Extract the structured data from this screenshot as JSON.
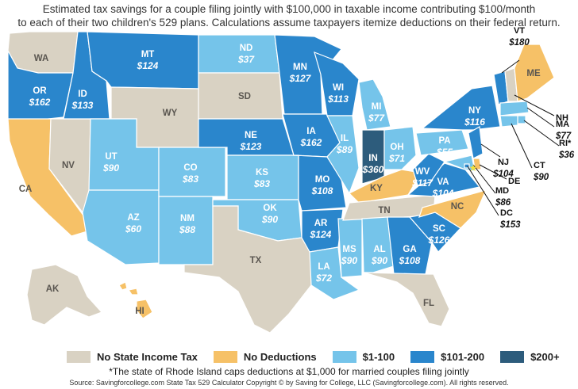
{
  "header": {
    "line1": "Estimated tax savings for a couple filing jointly with $100,000 in taxable income contributing $100/month",
    "line2": "to each of their two children's 529 plans. Calculations assume taxpayers itemize deductions on their federal return."
  },
  "colors": {
    "no_tax": "#d9d2c3",
    "no_deductions": "#f6c167",
    "low": "#75c4ea",
    "mid": "#2a86cc",
    "high": "#2d5c7c",
    "border": "#ffffff"
  },
  "legend": [
    {
      "label": "No State Income Tax",
      "color": "#d9d2c3"
    },
    {
      "label": "No Deductions",
      "color": "#f6c167"
    },
    {
      "label": "$1-100",
      "color": "#75c4ea"
    },
    {
      "label": "$101-200",
      "color": "#2a86cc"
    },
    {
      "label": "$200+",
      "color": "#2d5c7c"
    }
  ],
  "states": [
    {
      "abbr": "WA",
      "value": "",
      "category": "no_tax"
    },
    {
      "abbr": "OR",
      "value": "$162",
      "category": "mid"
    },
    {
      "abbr": "CA",
      "value": "",
      "category": "no_deductions"
    },
    {
      "abbr": "NV",
      "value": "",
      "category": "no_tax"
    },
    {
      "abbr": "ID",
      "value": "$133",
      "category": "mid"
    },
    {
      "abbr": "MT",
      "value": "$124",
      "category": "mid"
    },
    {
      "abbr": "WY",
      "value": "",
      "category": "no_tax"
    },
    {
      "abbr": "UT",
      "value": "$90",
      "category": "low"
    },
    {
      "abbr": "AZ",
      "value": "$60",
      "category": "low"
    },
    {
      "abbr": "CO",
      "value": "$83",
      "category": "low"
    },
    {
      "abbr": "NM",
      "value": "$88",
      "category": "low"
    },
    {
      "abbr": "ND",
      "value": "$37",
      "category": "low"
    },
    {
      "abbr": "SD",
      "value": "",
      "category": "no_tax"
    },
    {
      "abbr": "NE",
      "value": "$123",
      "category": "mid"
    },
    {
      "abbr": "KS",
      "value": "$83",
      "category": "low"
    },
    {
      "abbr": "OK",
      "value": "$90",
      "category": "low"
    },
    {
      "abbr": "TX",
      "value": "",
      "category": "no_tax"
    },
    {
      "abbr": "MN",
      "value": "$127",
      "category": "mid"
    },
    {
      "abbr": "IA",
      "value": "$162",
      "category": "mid"
    },
    {
      "abbr": "MO",
      "value": "$108",
      "category": "mid"
    },
    {
      "abbr": "AR",
      "value": "$124",
      "category": "mid"
    },
    {
      "abbr": "LA",
      "value": "$72",
      "category": "low"
    },
    {
      "abbr": "WI",
      "value": "$113",
      "category": "mid"
    },
    {
      "abbr": "IL",
      "value": "$89",
      "category": "low"
    },
    {
      "abbr": "MS",
      "value": "$90",
      "category": "low"
    },
    {
      "abbr": "MI",
      "value": "$77",
      "category": "low"
    },
    {
      "abbr": "IN",
      "value": "$360",
      "category": "high"
    },
    {
      "abbr": "OH",
      "value": "$71",
      "category": "low"
    },
    {
      "abbr": "KY",
      "value": "",
      "category": "no_deductions"
    },
    {
      "abbr": "TN",
      "value": "",
      "category": "no_tax"
    },
    {
      "abbr": "AL",
      "value": "$90",
      "category": "low"
    },
    {
      "abbr": "GA",
      "value": "$108",
      "category": "mid"
    },
    {
      "abbr": "FL",
      "value": "",
      "category": "no_tax"
    },
    {
      "abbr": "SC",
      "value": "$126",
      "category": "mid"
    },
    {
      "abbr": "NC",
      "value": "",
      "category": "no_deductions"
    },
    {
      "abbr": "VA",
      "value": "$104",
      "category": "mid"
    },
    {
      "abbr": "WV",
      "value": "$117",
      "category": "mid"
    },
    {
      "abbr": "PA",
      "value": "$55",
      "category": "low"
    },
    {
      "abbr": "NY",
      "value": "$116",
      "category": "mid"
    },
    {
      "abbr": "VT",
      "value": "$180",
      "category": "mid"
    },
    {
      "abbr": "NH",
      "value": "",
      "category": "no_tax"
    },
    {
      "abbr": "ME",
      "value": "",
      "category": "no_deductions"
    },
    {
      "abbr": "MA",
      "value": "$77",
      "category": "low"
    },
    {
      "abbr": "RI*",
      "value": "$36",
      "category": "low"
    },
    {
      "abbr": "CT",
      "value": "$90",
      "category": "low"
    },
    {
      "abbr": "NJ",
      "value": "$104",
      "category": "mid"
    },
    {
      "abbr": "DE",
      "value": "",
      "category": "no_deductions"
    },
    {
      "abbr": "MD",
      "value": "$86",
      "category": "low"
    },
    {
      "abbr": "DC",
      "value": "$153",
      "category": "mid"
    },
    {
      "abbr": "AK",
      "value": "",
      "category": "no_tax"
    },
    {
      "abbr": "HI",
      "value": "",
      "category": "no_deductions"
    }
  ],
  "footnote": "*The state of Rhode Island caps deductions at $1,000 for married couples filing jointly",
  "source": "Source: Savingforcollege.com State Tax 529 Calculator   Copyright ©  by Saving for College, LLC (Savingforcollege.com). All rights reserved."
}
